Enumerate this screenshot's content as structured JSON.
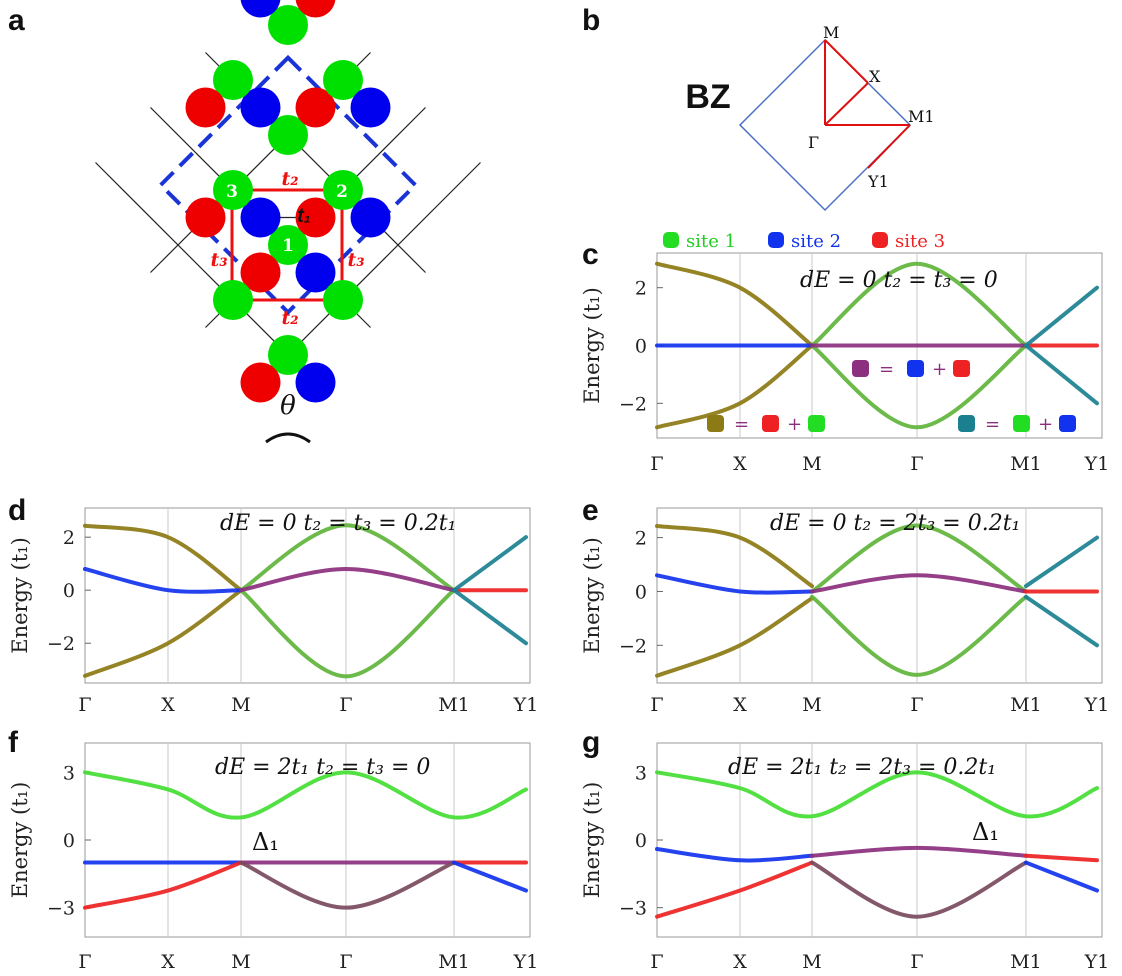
{
  "panel_labels": [
    "a",
    "b",
    "c",
    "d",
    "e",
    "f",
    "g"
  ],
  "lattice": {
    "hop_t1": "t₁",
    "hop_t2": "t₂",
    "hop_t3": "t₃",
    "site_numbers": [
      "1",
      "2",
      "3"
    ],
    "angle": "θ",
    "colors": {
      "site1": "#00e000",
      "site2": "#0000ee",
      "site3": "#ee0000",
      "hop": "#ee0000",
      "cell": "#1a33d6"
    }
  },
  "bz": {
    "title": "BZ",
    "points": [
      "M",
      "X",
      "Γ",
      "M1",
      "Y1"
    ]
  },
  "legend": [
    {
      "name": "site 1",
      "color": "#22dd22"
    },
    {
      "name": "site 2",
      "color": "#1133ee"
    },
    {
      "name": "site 3",
      "color": "#ee2222"
    }
  ],
  "mix_legend": [
    {
      "result": "#8b2f7e",
      "a": "#1133ee",
      "b": "#ee2222"
    },
    {
      "result": "#8c7a14",
      "a": "#ee2222",
      "b": "#22dd22"
    },
    {
      "result": "#1a8090",
      "a": "#22dd22",
      "b": "#1133ee"
    }
  ],
  "chart_data": [
    {
      "panel": "c",
      "type": "line",
      "ylabel": "Energy (t₁)",
      "categories": [
        "Γ",
        "X",
        "M",
        "Γ",
        "M1",
        "Y1"
      ],
      "yticks": [
        "2",
        "0",
        "−2"
      ],
      "ylim": [
        -3.2,
        3.2
      ],
      "annotation": "dE = 0    t₂ = t₃ = 0",
      "series": [
        {
          "color": "#8c7a14",
          "points": [
            [
              0,
              2.83
            ],
            [
              1,
              2.0
            ],
            [
              2,
              0.0
            ]
          ]
        },
        {
          "color": "#8c7a14",
          "points": [
            [
              0,
              -2.83
            ],
            [
              1,
              -2.0
            ],
            [
              2,
              0.0
            ]
          ]
        },
        {
          "color": "#5fb43a",
          "points": [
            [
              2,
              0.0
            ],
            [
              3,
              2.83
            ],
            [
              4,
              0.0
            ]
          ]
        },
        {
          "color": "#5fb43a",
          "points": [
            [
              2,
              0.0
            ],
            [
              3,
              -2.83
            ],
            [
              4,
              0.0
            ]
          ]
        },
        {
          "color": "#1133ee",
          "points": [
            [
              0,
              0.0
            ],
            [
              1,
              0.0
            ],
            [
              2,
              0.0
            ]
          ]
        },
        {
          "color": "#8b2f7e",
          "points": [
            [
              2,
              0.0
            ],
            [
              3,
              0.0
            ],
            [
              4,
              0.0
            ]
          ]
        },
        {
          "color": "#ee2222",
          "points": [
            [
              4,
              0.0
            ],
            [
              5,
              0.0
            ]
          ]
        },
        {
          "color": "#1a8090",
          "points": [
            [
              4,
              0.0
            ],
            [
              5,
              2.0
            ]
          ]
        },
        {
          "color": "#1a8090",
          "points": [
            [
              4,
              0.0
            ],
            [
              5,
              -2.0
            ]
          ]
        }
      ]
    },
    {
      "panel": "d",
      "type": "line",
      "ylabel": "Energy (t₁)",
      "categories": [
        "Γ",
        "X",
        "M",
        "Γ",
        "M1",
        "Y1"
      ],
      "yticks": [
        "2",
        "0",
        "−2"
      ],
      "ylim": [
        -3.5,
        3.1
      ],
      "annotation": "dE = 0  t₂ = t₃ = 0.2t₁",
      "series": [
        {
          "color": "#8c7a14",
          "points": [
            [
              0,
              2.43
            ],
            [
              1,
              2.0
            ],
            [
              2,
              0.0
            ]
          ]
        },
        {
          "color": "#8c7a14",
          "points": [
            [
              0,
              -3.23
            ],
            [
              1,
              -2.0
            ],
            [
              2,
              0.0
            ]
          ]
        },
        {
          "color": "#5fb43a",
          "points": [
            [
              2,
              0.0
            ],
            [
              3,
              2.45
            ],
            [
              4,
              0.0
            ]
          ]
        },
        {
          "color": "#5fb43a",
          "points": [
            [
              2,
              0.0
            ],
            [
              3,
              -3.25
            ],
            [
              4,
              0.0
            ]
          ]
        },
        {
          "color": "#1133ee",
          "points": [
            [
              0,
              0.8
            ],
            [
              1,
              0.0
            ],
            [
              2,
              0.0
            ]
          ]
        },
        {
          "color": "#8b2f7e",
          "points": [
            [
              2,
              0.0
            ],
            [
              3,
              0.8
            ],
            [
              4,
              0.0
            ]
          ]
        },
        {
          "color": "#ee2222",
          "points": [
            [
              4,
              0.0
            ],
            [
              5,
              0.0
            ]
          ]
        },
        {
          "color": "#1a8090",
          "points": [
            [
              4,
              0.0
            ],
            [
              5,
              2.0
            ]
          ]
        },
        {
          "color": "#1a8090",
          "points": [
            [
              4,
              0.0
            ],
            [
              5,
              -2.0
            ]
          ]
        }
      ]
    },
    {
      "panel": "e",
      "type": "line",
      "ylabel": "Energy (t₁)",
      "categories": [
        "Γ",
        "X",
        "M",
        "Γ",
        "M1",
        "Y1"
      ],
      "yticks": [
        "2",
        "0",
        "−2"
      ],
      "ylim": [
        -3.4,
        3.1
      ],
      "annotation": "dE = 0  t₂ = 2t₃ = 0.2t₁",
      "series": [
        {
          "color": "#8c7a14",
          "points": [
            [
              0,
              2.43
            ],
            [
              1,
              2.0
            ],
            [
              2,
              0.2
            ]
          ]
        },
        {
          "color": "#8c7a14",
          "points": [
            [
              0,
              -3.13
            ],
            [
              1,
              -2.0
            ],
            [
              2,
              -0.25
            ]
          ]
        },
        {
          "color": "#5fb43a",
          "points": [
            [
              2,
              0.0
            ],
            [
              3,
              2.45
            ],
            [
              4,
              0.0
            ]
          ]
        },
        {
          "color": "#5fb43a",
          "points": [
            [
              2,
              -0.2
            ],
            [
              3,
              -3.1
            ],
            [
              4,
              -0.2
            ]
          ]
        },
        {
          "color": "#1133ee",
          "points": [
            [
              0,
              0.6
            ],
            [
              1,
              0.0
            ],
            [
              2,
              0.0
            ]
          ]
        },
        {
          "color": "#8b2f7e",
          "points": [
            [
              2,
              0.0
            ],
            [
              3,
              0.6
            ],
            [
              4,
              0.0
            ]
          ]
        },
        {
          "color": "#ee2222",
          "points": [
            [
              4,
              0.0
            ],
            [
              5,
              0.0
            ]
          ]
        },
        {
          "color": "#1a8090",
          "points": [
            [
              4,
              0.2
            ],
            [
              5,
              2.0
            ]
          ]
        },
        {
          "color": "#1a8090",
          "points": [
            [
              4,
              -0.2
            ],
            [
              5,
              -2.0
            ]
          ]
        }
      ]
    },
    {
      "panel": "f",
      "type": "line",
      "ylabel": "Energy (t₁)",
      "categories": [
        "Γ",
        "X",
        "M",
        "Γ",
        "M1",
        "Y1"
      ],
      "yticks": [
        "3",
        "0",
        "−3"
      ],
      "ylim": [
        -4.3,
        4.3
      ],
      "annotation": "dE = 2t₁   t₂ = t₃ = 0",
      "gap_label": "Δ₁",
      "series": [
        {
          "color": "#44dd33",
          "points": [
            [
              0,
              3.0
            ],
            [
              1,
              2.24
            ],
            [
              2,
              1.0
            ],
            [
              3,
              3.0
            ],
            [
              4,
              1.0
            ],
            [
              5,
              2.24
            ]
          ]
        },
        {
          "color": "#1133ee",
          "points": [
            [
              0,
              -1.0
            ],
            [
              1,
              -1.0
            ],
            [
              2,
              -1.0
            ]
          ]
        },
        {
          "color": "#8b2f7e",
          "points": [
            [
              2,
              -1.0
            ],
            [
              3,
              -1.0
            ],
            [
              4,
              -1.0
            ]
          ]
        },
        {
          "color": "#ee2222",
          "points": [
            [
              4,
              -1.0
            ],
            [
              5,
              -1.0
            ]
          ]
        },
        {
          "color": "#ee2222",
          "points": [
            [
              0,
              -3.0
            ],
            [
              1,
              -2.24
            ],
            [
              2,
              -1.0
            ]
          ]
        },
        {
          "color": "#7a4a5e",
          "points": [
            [
              2,
              -1.0
            ],
            [
              3,
              -3.0
            ],
            [
              4,
              -1.0
            ]
          ]
        },
        {
          "color": "#1133ee",
          "points": [
            [
              4,
              -1.0
            ],
            [
              5,
              -2.24
            ]
          ]
        }
      ]
    },
    {
      "panel": "g",
      "type": "line",
      "ylabel": "Energy (t₁)",
      "categories": [
        "Γ",
        "X",
        "M",
        "Γ",
        "M1",
        "Y1"
      ],
      "yticks": [
        "3",
        "0",
        "−3"
      ],
      "ylim": [
        -4.3,
        4.3
      ],
      "annotation": "dE = 2t₁    t₂ = 2t₃ = 0.2t₁",
      "gap_label": "Δ₁",
      "series": [
        {
          "color": "#44dd33",
          "points": [
            [
              0,
              3.0
            ],
            [
              1,
              2.3
            ],
            [
              2,
              1.05
            ],
            [
              3,
              3.0
            ],
            [
              4,
              1.05
            ],
            [
              5,
              2.3
            ]
          ]
        },
        {
          "color": "#1133ee",
          "points": [
            [
              0,
              -0.4
            ],
            [
              1,
              -0.9
            ],
            [
              2,
              -0.7
            ]
          ]
        },
        {
          "color": "#8b2f7e",
          "points": [
            [
              2,
              -0.7
            ],
            [
              3,
              -0.35
            ],
            [
              4,
              -0.7
            ]
          ]
        },
        {
          "color": "#ee2222",
          "points": [
            [
              4,
              -0.7
            ],
            [
              5,
              -0.9
            ]
          ]
        },
        {
          "color": "#ee2222",
          "points": [
            [
              0,
              -3.4
            ],
            [
              1,
              -2.24
            ],
            [
              2,
              -1.0
            ]
          ]
        },
        {
          "color": "#7a4a5e",
          "points": [
            [
              2,
              -1.0
            ],
            [
              3,
              -3.4
            ],
            [
              4,
              -1.0
            ]
          ]
        },
        {
          "color": "#1133ee",
          "points": [
            [
              4,
              -1.0
            ],
            [
              5,
              -2.24
            ]
          ]
        }
      ]
    }
  ]
}
